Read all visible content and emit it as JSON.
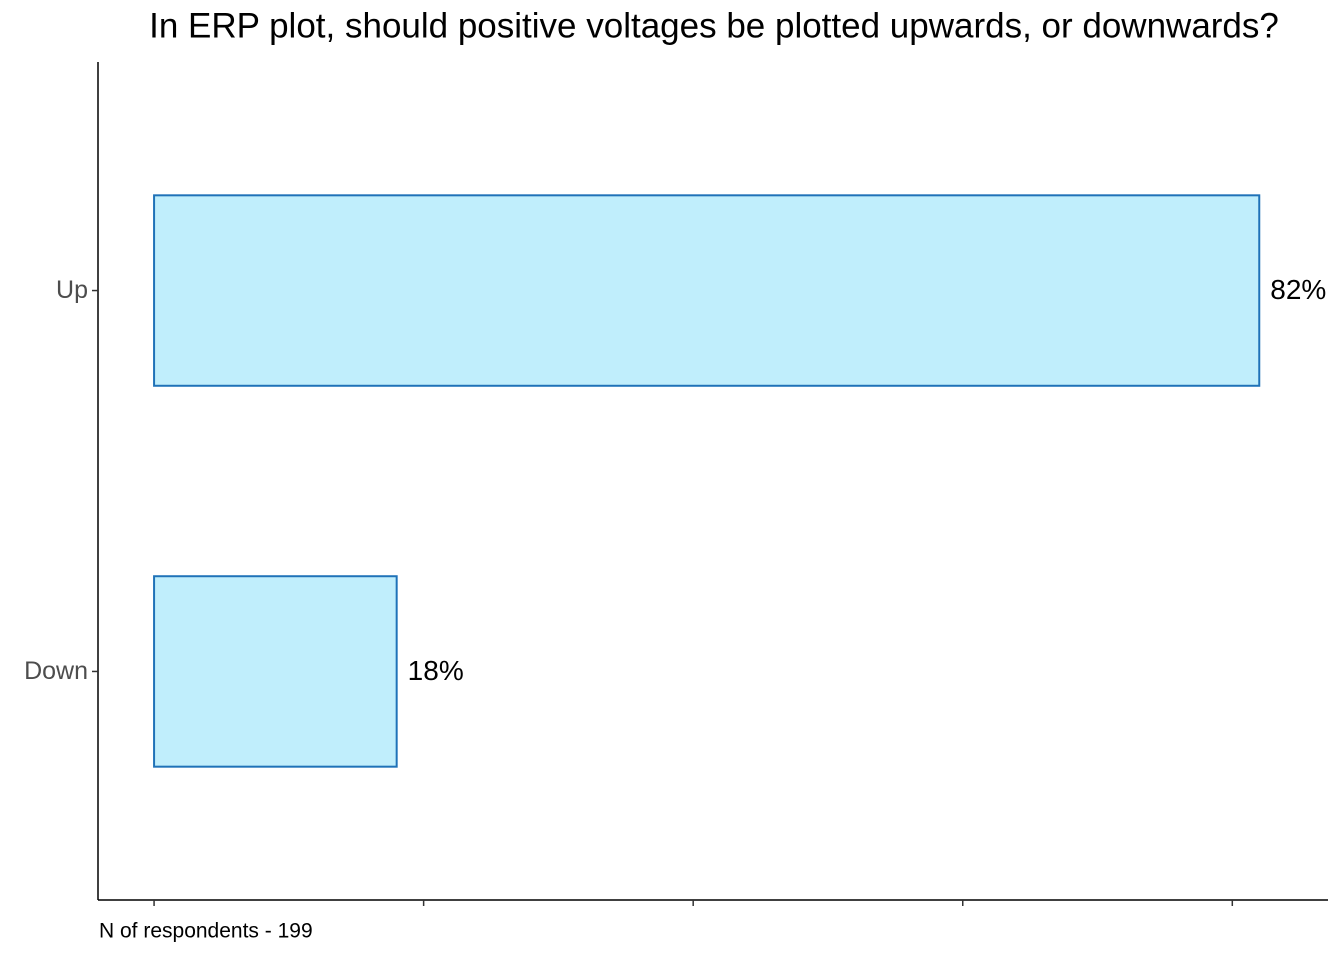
{
  "chart_data": {
    "type": "hbar",
    "title": "In ERP plot, should positive voltages be plotted upwards, or downwards?",
    "categories": [
      "Up",
      "Down"
    ],
    "values": [
      82,
      18
    ],
    "value_labels": [
      "82%",
      "18%"
    ],
    "color": "#c0eefc",
    "edge_color": "#1f72b8",
    "xlim": [
      -4.16,
      87.1
    ],
    "xticks": [
      0,
      20,
      40,
      60,
      80
    ],
    "grid": false,
    "caption": "N of respondents - 199"
  }
}
